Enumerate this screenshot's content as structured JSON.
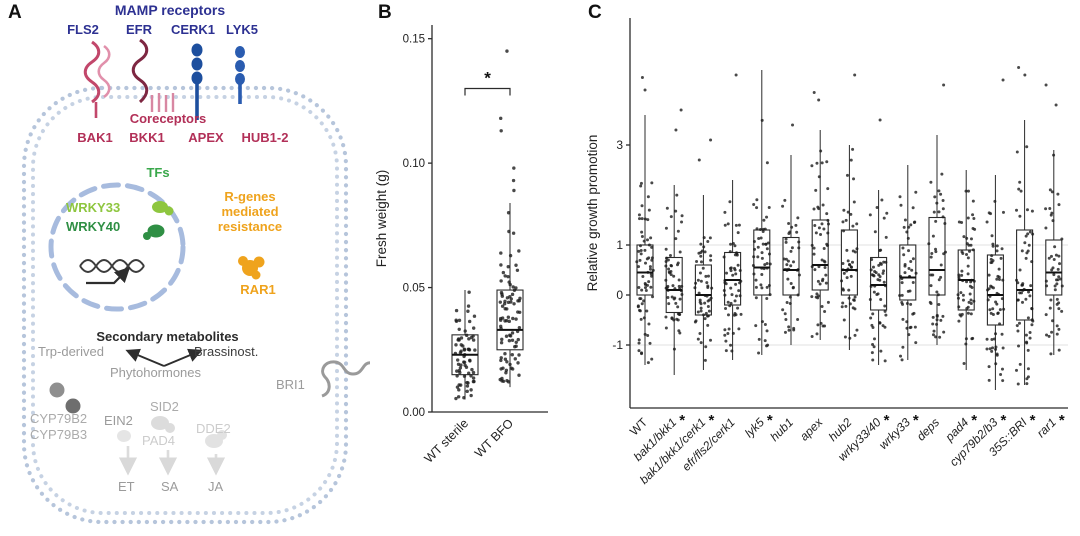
{
  "panels": {
    "a": "A",
    "b": "B",
    "c": "C"
  },
  "colors": {
    "navy": "#2d3192",
    "crimson": "#b23058",
    "green": "#3aa84b",
    "light_green": "#8ec63f",
    "dark_green": "#2f8f44",
    "orange": "#efa31d",
    "gray": "#9b9b9b",
    "light_gray": "#cccccc",
    "membrane_blue": "#b6c5db",
    "receptor_blue": "#1d4f9e",
    "receptor_pink": "#c2476b",
    "point_black": "#1b1b1b"
  },
  "panel_a": {
    "mamp_title": "MAMP receptors",
    "receptors": [
      "FLS2",
      "EFR",
      "CERK1",
      "LYK5"
    ],
    "coreceptors_title": "Coreceptors",
    "coreceptors": [
      "BAK1",
      "BKK1",
      "APEX",
      "HUB1-2"
    ],
    "tfs": "TFs",
    "wrky33": "WRKY33",
    "wrky40": "WRKY40",
    "rgenes": "R-genes mediated resistance",
    "rar1": "RAR1",
    "secondary": "Secondary metabolites",
    "trp": "Trp-derived",
    "brassinost": "Brassinost.",
    "phytohormones": "Phytohormones",
    "cyp1": "CYP79B2",
    "cyp2": "CYP79B3",
    "ein2": "EIN2",
    "sid2": "SID2",
    "pad4": "PAD4",
    "dde2": "DDE2",
    "bri1": "BRI1",
    "et": "ET",
    "sa": "SA",
    "ja": "JA",
    "icons": [
      "cell-membrane",
      "fls2-receptor",
      "efr-receptor",
      "coreceptor-comb",
      "cerk1-receptor",
      "lyk5-receptor",
      "nucleus",
      "wrky33-protein",
      "wrky40-protein",
      "dna",
      "transcription-arrow",
      "rar1-protein",
      "metabolite-dots",
      "pathway-branch-arrows",
      "ein2-protein",
      "pad4-protein",
      "dde2-protein",
      "bri1-receptor",
      "hormone-arrows"
    ]
  },
  "chart_data": [
    {
      "id": "fresh-weight",
      "type": "box",
      "title": "",
      "xlabel": "",
      "ylabel": "Fresh weight (g)",
      "ylim": [
        0,
        0.1555
      ],
      "yticks": [
        0,
        0.05,
        0.1,
        0.15
      ],
      "ytick_labels": [
        "0.00",
        "0.05",
        "0.10",
        "0.15"
      ],
      "gridlines": [],
      "legend": "none",
      "categories": [
        "WT sterile",
        "WT BFO"
      ],
      "significance": {
        "symbol": "*",
        "y": 0.13,
        "between": [
          0,
          1
        ]
      },
      "boxes": [
        {
          "lo": 0.005,
          "q1": 0.015,
          "med": 0.023,
          "q3": 0.031,
          "hi": 0.049,
          "n": 70,
          "outliers": [],
          "sig": false
        },
        {
          "lo": 0.01,
          "q1": 0.025,
          "med": 0.033,
          "q3": 0.049,
          "hi": 0.084,
          "n": 88,
          "outliers": [
            0.089,
            0.093,
            0.098,
            0.113,
            0.118,
            0.145
          ],
          "sig": false
        }
      ]
    },
    {
      "id": "relative-growth-promotion",
      "type": "box",
      "title": "",
      "xlabel": "",
      "ylabel": "Relative growth promotion",
      "ylim": [
        -2.26,
        5.54
      ],
      "yticks": [
        -1,
        0,
        1,
        3
      ],
      "ytick_labels": [
        "-1",
        "0",
        "1",
        "3"
      ],
      "gridlines": [
        -1,
        1
      ],
      "legend": "none",
      "sig_symbol": "*",
      "categories": [
        "WT",
        "bak1/bkk1",
        "bak1/bkk1/cerk1",
        "efr/fls2/cerk1",
        "lyk5",
        "hub1",
        "apex",
        "hub2",
        "wrky33/40",
        "wrky33",
        "deps",
        "pad4",
        "cyp79b2/b3",
        "35S::BRI",
        "rar1"
      ],
      "boxes": [
        {
          "lo": -1.4,
          "q1": 0.0,
          "med": 0.45,
          "q3": 1.0,
          "hi": 3.6,
          "n": 70,
          "outliers": [
            4.1,
            4.35
          ],
          "sig": false
        },
        {
          "lo": -1.6,
          "q1": -0.35,
          "med": 0.1,
          "q3": 0.75,
          "hi": 2.2,
          "n": 60,
          "outliers": [
            3.3,
            3.7
          ],
          "sig": true
        },
        {
          "lo": -1.5,
          "q1": -0.4,
          "med": 0.0,
          "q3": 0.6,
          "hi": 2.0,
          "n": 55,
          "outliers": [
            2.7,
            3.1
          ],
          "sig": true
        },
        {
          "lo": -1.3,
          "q1": -0.2,
          "med": 0.3,
          "q3": 0.85,
          "hi": 2.3,
          "n": 60,
          "outliers": [
            4.4
          ],
          "sig": false
        },
        {
          "lo": -1.2,
          "q1": 0.0,
          "med": 0.55,
          "q3": 1.3,
          "hi": 4.5,
          "n": 55,
          "outliers": [],
          "sig": true
        },
        {
          "lo": -1.0,
          "q1": 0.0,
          "med": 0.5,
          "q3": 1.15,
          "hi": 2.8,
          "n": 45,
          "outliers": [
            3.4
          ],
          "sig": false
        },
        {
          "lo": -0.9,
          "q1": 0.1,
          "med": 0.6,
          "q3": 1.5,
          "hi": 3.3,
          "n": 55,
          "outliers": [
            3.9,
            4.05
          ],
          "sig": false
        },
        {
          "lo": -1.1,
          "q1": 0.0,
          "med": 0.5,
          "q3": 1.3,
          "hi": 3.0,
          "n": 50,
          "outliers": [
            4.4
          ],
          "sig": false
        },
        {
          "lo": -1.4,
          "q1": -0.3,
          "med": 0.2,
          "q3": 0.75,
          "hi": 2.1,
          "n": 55,
          "outliers": [
            3.5
          ],
          "sig": true
        },
        {
          "lo": -1.3,
          "q1": -0.1,
          "med": 0.35,
          "q3": 1.0,
          "hi": 2.6,
          "n": 50,
          "outliers": [],
          "sig": true
        },
        {
          "lo": -1.0,
          "q1": 0.0,
          "med": 0.5,
          "q3": 1.55,
          "hi": 3.2,
          "n": 45,
          "outliers": [
            4.2
          ],
          "sig": false
        },
        {
          "lo": -1.5,
          "q1": -0.3,
          "med": 0.3,
          "q3": 0.9,
          "hi": 2.5,
          "n": 60,
          "outliers": [],
          "sig": true
        },
        {
          "lo": -1.9,
          "q1": -0.6,
          "med": 0.0,
          "q3": 0.8,
          "hi": 2.4,
          "n": 65,
          "outliers": [
            4.3
          ],
          "sig": true
        },
        {
          "lo": -1.8,
          "q1": -0.5,
          "med": 0.1,
          "q3": 1.3,
          "hi": 3.5,
          "n": 60,
          "outliers": [
            4.4,
            4.55
          ],
          "sig": true
        },
        {
          "lo": -1.2,
          "q1": 0.0,
          "med": 0.45,
          "q3": 1.1,
          "hi": 2.9,
          "n": 50,
          "outliers": [
            3.8,
            4.2
          ],
          "sig": true
        }
      ]
    }
  ]
}
